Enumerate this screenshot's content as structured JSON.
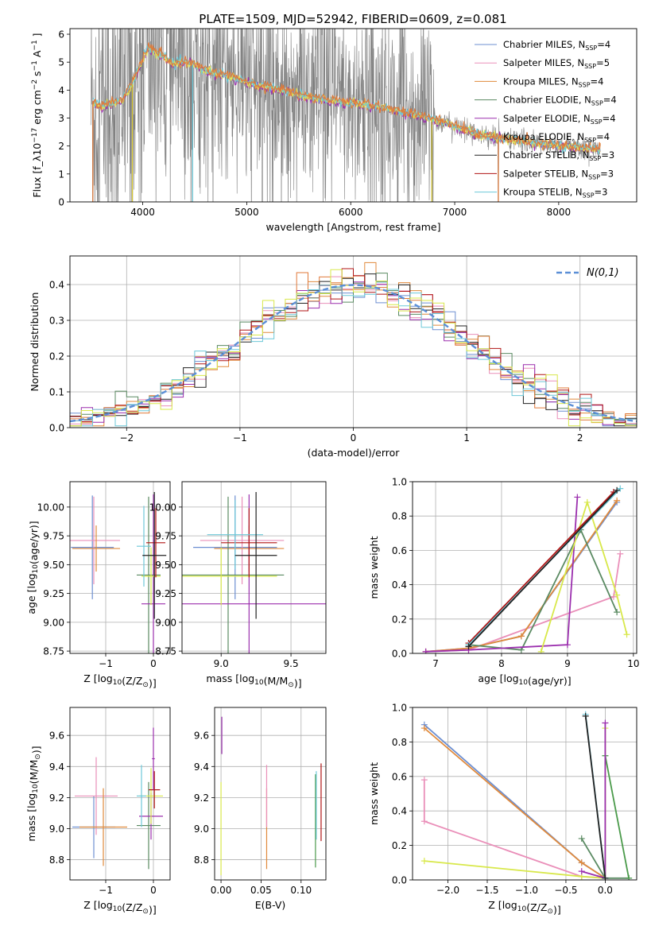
{
  "title": "PLATE=1509, MJD=52942, FIBERID=0609, z=0.081",
  "colors": {
    "grid": "#b0b0b0",
    "observed_spectrum": "#808080",
    "normal_curve": "#5b8fd6",
    "models": [
      "#6d8fd1",
      "#ea8fb9",
      "#e08a3c",
      "#5a8a62",
      "#9b2fae",
      "#e07a3a",
      "#222222",
      "#b01515",
      "#6dc8d8"
    ],
    "extra_series": [
      "#d8e84a",
      "#4a9a4a",
      "#1a1a1a"
    ]
  },
  "chart_data": [
    {
      "id": "spectrum",
      "type": "line",
      "xlabel": "wavelength [Angstrom, rest frame]",
      "ylabel": "Flux [f_λ10^-17 erg cm^-2 s^-1 A^-1]",
      "xlim": [
        3300,
        8750
      ],
      "ylim": [
        0,
        6.2
      ],
      "xticks": [
        4000,
        5000,
        6000,
        7000,
        8000
      ],
      "yticks": [
        0,
        1,
        2,
        3,
        4,
        5,
        6
      ],
      "grid": false,
      "legend_position": "top-right",
      "legend": [
        {
          "label": "Chabrier MILES, N",
          "sub": "SSP",
          "suffix": "=4"
        },
        {
          "label": "Salpeter MILES, N",
          "sub": "SSP",
          "suffix": "=5"
        },
        {
          "label": "Kroupa MILES, N",
          "sub": "SSP",
          "suffix": "=4"
        },
        {
          "label": "Chabrier ELODIE, N",
          "sub": "SSP",
          "suffix": "=4"
        },
        {
          "label": "Salpeter ELODIE, N",
          "sub": "SSP",
          "suffix": "=4"
        },
        {
          "label": "Kroupa ELODIE, N",
          "sub": "SSP",
          "suffix": "=4"
        },
        {
          "label": "Chabrier STELIB, N",
          "sub": "SSP",
          "suffix": "=3"
        },
        {
          "label": "Salpeter STELIB, N",
          "sub": "SSP",
          "suffix": "=3"
        },
        {
          "label": "Kroupa STELIB, N",
          "sub": "SSP",
          "suffix": "=3"
        }
      ],
      "model_continuum": {
        "x": [
          3520,
          3600,
          3700,
          3800,
          3900,
          4000,
          4050,
          4100,
          4200,
          4300,
          4400,
          4500,
          4600,
          4700,
          4800,
          4900,
          5000,
          5200,
          5400,
          5600,
          5800,
          6000,
          6200,
          6400,
          6600,
          6800,
          7000,
          7200,
          7400,
          7600,
          7800,
          8000,
          8200,
          8400
        ],
        "y": [
          3.6,
          3.4,
          3.55,
          3.65,
          4.2,
          5.1,
          5.5,
          5.4,
          5.2,
          4.9,
          5.0,
          4.9,
          4.7,
          4.6,
          4.5,
          4.4,
          4.25,
          4.1,
          3.95,
          3.75,
          3.65,
          3.55,
          3.45,
          3.3,
          3.15,
          2.95,
          2.7,
          2.45,
          2.3,
          2.2,
          2.1,
          2.0,
          1.95,
          1.9
        ]
      },
      "observed": {
        "x_range": [
          3500,
          8400
        ],
        "noise_amplitude_short": 2.5,
        "noise_amplitude_long": 0.25,
        "dropout_wavelengths": [
          3520,
          3750,
          3900,
          4480,
          5150,
          6780,
          7420
        ]
      }
    },
    {
      "id": "residual-distribution",
      "type": "histogram",
      "xlabel": "(data-model)/error",
      "ylabel": "Normed distribution",
      "xlim": [
        -2.5,
        2.5
      ],
      "ylim": [
        0,
        0.48
      ],
      "xticks": [
        -2,
        -1,
        0,
        1,
        2
      ],
      "yticks": [
        0.0,
        0.1,
        0.2,
        0.3,
        0.4
      ],
      "grid": true,
      "legend_position": "top-right",
      "reference_label": "N(0,1)",
      "bin_width": 0.1,
      "reference": {
        "mean": 0,
        "sigma": 1
      }
    },
    {
      "id": "age-vs-metallicity",
      "type": "errorbar",
      "xlabel": "Z [log10(Z/Z⊙)]",
      "ylabel": "age  [log10(age/yr)]",
      "xlim": [
        -1.75,
        0.35
      ],
      "ylim": [
        8.73,
        10.22
      ],
      "xticks": [
        -1,
        0
      ],
      "yticks": [
        8.75,
        9.0,
        9.25,
        9.5,
        9.75,
        10.0
      ],
      "grid": true,
      "points": [
        {
          "x": -1.28,
          "xerr": 0.45,
          "y": 9.65,
          "yerr": 0.45,
          "c": 0
        },
        {
          "x": -1.25,
          "xerr": 0.55,
          "y": 9.71,
          "yerr": 0.38,
          "c": 1
        },
        {
          "x": -1.2,
          "xerr": 0.5,
          "y": 9.64,
          "yerr": 0.2,
          "c": 2
        },
        {
          "x": -0.1,
          "xerr": 0.25,
          "y": 9.41,
          "yerr": 0.68,
          "c": 3
        },
        {
          "x": 0.0,
          "xerr": 0.25,
          "y": 9.16,
          "yerr": 0.95,
          "c": 4
        },
        {
          "x": -0.05,
          "xerr": 0.2,
          "y": 9.4,
          "yerr": 0.25,
          "c": 9
        },
        {
          "x": 0.05,
          "xerr": 0.2,
          "y": 9.69,
          "yerr": 0.3,
          "c": 7
        },
        {
          "x": -0.2,
          "xerr": 0.15,
          "y": 9.66,
          "yerr": 0.35,
          "c": 8
        },
        {
          "x": 0.02,
          "xerr": 0.25,
          "y": 9.58,
          "yerr": 0.55,
          "c": 6
        }
      ]
    },
    {
      "id": "age-vs-mass",
      "type": "errorbar",
      "xlabel": "mass [log10(M/M⊙)]",
      "ylabel": "",
      "xlim": [
        8.72,
        9.75
      ],
      "ylim": [
        8.73,
        10.22
      ],
      "xticks": [
        9.0,
        9.5
      ],
      "yticks": [
        8.75,
        9.0,
        9.25,
        9.5,
        9.75,
        10.0
      ],
      "grid": true,
      "points": [
        {
          "x": 9.1,
          "xerr": 0.3,
          "y": 9.65,
          "yerr": 0.45,
          "c": 0
        },
        {
          "x": 9.15,
          "xerr": 0.3,
          "y": 9.71,
          "yerr": 0.38,
          "c": 1
        },
        {
          "x": 9.2,
          "xerr": 0.25,
          "y": 9.64,
          "yerr": 0.2,
          "c": 2
        },
        {
          "x": 9.05,
          "xerr": 0.4,
          "y": 9.41,
          "yerr": 0.68,
          "c": 3
        },
        {
          "x": 9.2,
          "xerr": 0.55,
          "y": 9.16,
          "yerr": 0.95,
          "c": 4
        },
        {
          "x": 9.0,
          "xerr": 0.4,
          "y": 9.4,
          "yerr": 0.25,
          "c": 9
        },
        {
          "x": 9.2,
          "xerr": 0.2,
          "y": 9.69,
          "yerr": 0.3,
          "c": 7
        },
        {
          "x": 9.1,
          "xerr": 0.2,
          "y": 9.76,
          "yerr": 0.3,
          "c": 8
        },
        {
          "x": 9.25,
          "xerr": 0.15,
          "y": 9.58,
          "yerr": 0.55,
          "c": 6
        }
      ]
    },
    {
      "id": "weight-vs-age",
      "type": "line",
      "xlabel": "age  [log10(age/yr)]",
      "ylabel": "mass weight",
      "xlim": [
        6.65,
        10.05
      ],
      "ylim": [
        0.0,
        1.0
      ],
      "xticks": [
        7,
        8,
        9,
        10
      ],
      "yticks": [
        0.0,
        0.2,
        0.4,
        0.6,
        0.8,
        1.0
      ],
      "grid": true,
      "series": [
        {
          "c": 0,
          "x": [
            6.85,
            7.5,
            8.3,
            9.75
          ],
          "y": [
            0.01,
            0.03,
            0.1,
            0.88
          ]
        },
        {
          "c": 1,
          "x": [
            6.85,
            7.5,
            9.7,
            9.8
          ],
          "y": [
            0.01,
            0.02,
            0.33,
            0.58
          ]
        },
        {
          "c": 2,
          "x": [
            6.85,
            7.5,
            8.3,
            9.75
          ],
          "y": [
            0.01,
            0.03,
            0.1,
            0.89
          ]
        },
        {
          "c": 3,
          "x": [
            7.5,
            8.3,
            9.2,
            9.75
          ],
          "y": [
            0.05,
            0.02,
            0.72,
            0.24
          ]
        },
        {
          "c": 4,
          "x": [
            6.85,
            7.5,
            9.0,
            9.15
          ],
          "y": [
            0.01,
            0.02,
            0.05,
            0.91
          ]
        },
        {
          "c": 9,
          "x": [
            8.6,
            9.3,
            9.75,
            9.9
          ],
          "y": [
            0.01,
            0.88,
            0.34,
            0.11
          ]
        },
        {
          "c": 7,
          "x": [
            7.5,
            9.7
          ],
          "y": [
            0.06,
            0.94
          ]
        },
        {
          "c": 8,
          "x": [
            7.5,
            9.8
          ],
          "y": [
            0.05,
            0.96
          ]
        },
        {
          "c": 6,
          "x": [
            7.5,
            9.75
          ],
          "y": [
            0.04,
            0.95
          ]
        }
      ]
    },
    {
      "id": "mass-vs-metallicity",
      "type": "errorbar",
      "xlabel": "Z [log10(Z/Z⊙)]",
      "ylabel": "mass [log10(M/M⊙)]",
      "xlim": [
        -1.75,
        0.35
      ],
      "ylim": [
        8.67,
        9.78
      ],
      "xticks": [
        -1,
        0
      ],
      "yticks": [
        8.8,
        9.0,
        9.2,
        9.4,
        9.6
      ],
      "grid": true,
      "points": [
        {
          "x": -1.25,
          "xerr": 0.45,
          "y": 9.01,
          "yerr": 0.2,
          "c": 0
        },
        {
          "x": -1.2,
          "xerr": 0.45,
          "y": 9.21,
          "yerr": 0.25,
          "c": 1
        },
        {
          "x": -1.05,
          "xerr": 0.5,
          "y": 9.01,
          "yerr": 0.25,
          "c": 2
        },
        {
          "x": -0.1,
          "xerr": 0.25,
          "y": 9.02,
          "yerr": 0.28,
          "c": 3
        },
        {
          "x": -0.05,
          "xerr": 0.25,
          "y": 9.08,
          "yerr": 0.15,
          "c": 4
        },
        {
          "x": -0.05,
          "xerr": 0.25,
          "y": 9.21,
          "yerr": 0.18,
          "c": 9
        },
        {
          "x": 0.02,
          "xerr": 0.12,
          "y": 9.25,
          "yerr": 0.12,
          "c": 7
        },
        {
          "x": -0.25,
          "xerr": 0.1,
          "y": 9.21,
          "yerr": 0.2,
          "c": 8
        },
        {
          "x": 0.0,
          "xerr": 0.03,
          "y": 9.45,
          "yerr": 0.2,
          "c": 4
        }
      ]
    },
    {
      "id": "mass-vs-ebv",
      "type": "errorbar",
      "xlabel": "E(B-V)",
      "ylabel": "",
      "xlim": [
        -0.008,
        0.131
      ],
      "ylim": [
        8.67,
        9.78
      ],
      "xticks": [
        0.0,
        0.05,
        0.1
      ],
      "yticks": [
        8.8,
        9.0,
        9.2,
        9.4,
        9.6
      ],
      "grid": true,
      "points": [
        {
          "x": 0.0,
          "xerr": 0.0,
          "y": 9.0,
          "yerr": 0.3,
          "c": 9
        },
        {
          "x": 0.001,
          "xerr": 0.0,
          "y": 9.6,
          "yerr": 0.12,
          "c": 4
        },
        {
          "x": 0.057,
          "xerr": 0.0,
          "y": 9.0,
          "yerr": 0.26,
          "c": 2
        },
        {
          "x": 0.057,
          "xerr": 0.0,
          "y": 9.21,
          "yerr": 0.2,
          "c": 1
        },
        {
          "x": 0.118,
          "xerr": 0.0,
          "y": 9.05,
          "yerr": 0.3,
          "c": 10
        },
        {
          "x": 0.119,
          "xerr": 0.0,
          "y": 9.15,
          "yerr": 0.22,
          "c": 8
        },
        {
          "x": 0.125,
          "xerr": 0.0,
          "y": 9.17,
          "yerr": 0.25,
          "c": 7
        }
      ]
    },
    {
      "id": "weight-vs-metallicity",
      "type": "line",
      "xlabel": "Z [log10(Z/Z⊙)]",
      "ylabel": "mass weight",
      "xlim": [
        -2.45,
        0.4
      ],
      "ylim": [
        0.0,
        1.0
      ],
      "xticks": [
        -2.0,
        -1.5,
        -1.0,
        -0.5,
        0.0
      ],
      "yticks": [
        0.0,
        0.2,
        0.4,
        0.6,
        0.8,
        1.0
      ],
      "grid": true,
      "series": [
        {
          "c": 0,
          "x": [
            -2.3,
            -0.3,
            0.0
          ],
          "y": [
            0.9,
            0.1,
            0.01
          ]
        },
        {
          "c": 2,
          "x": [
            -2.3,
            -0.3,
            0.0
          ],
          "y": [
            0.88,
            0.1,
            0.01
          ]
        },
        {
          "c": 1,
          "x": [
            -2.3,
            -2.3,
            -0.3,
            0.0
          ],
          "y": [
            0.58,
            0.34,
            0.02,
            0.01
          ]
        },
        {
          "c": 9,
          "x": [
            -2.3,
            -0.3,
            0.0,
            0.0
          ],
          "y": [
            0.11,
            0.02,
            0.01,
            0.88
          ]
        },
        {
          "c": 3,
          "x": [
            -0.3,
            0.0,
            0.3
          ],
          "y": [
            0.24,
            0.01,
            0.01
          ]
        },
        {
          "c": 10,
          "x": [
            0.0,
            0.3
          ],
          "y": [
            0.72,
            0.01
          ]
        },
        {
          "c": 4,
          "x": [
            -0.3,
            0.0,
            0.0
          ],
          "y": [
            0.05,
            0.01,
            0.91
          ]
        },
        {
          "c": 8,
          "x": [
            -0.25,
            0.0
          ],
          "y": [
            0.96,
            0.01
          ]
        },
        {
          "c": 6,
          "x": [
            -0.25,
            0.0
          ],
          "y": [
            0.95,
            0.01
          ]
        }
      ]
    }
  ]
}
